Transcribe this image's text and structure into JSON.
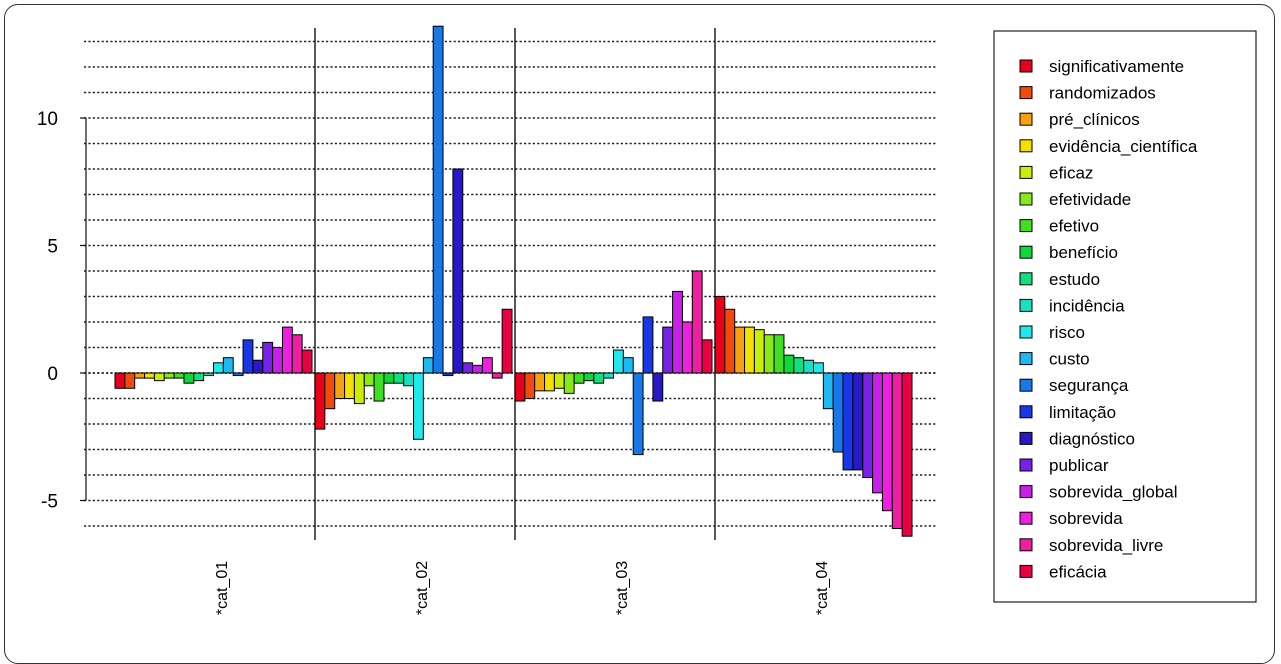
{
  "chart_data": {
    "type": "bar",
    "title": "",
    "xlabel": "",
    "ylabel": "",
    "ylim": [
      -6.8,
      13.6
    ],
    "yticks": [
      -5,
      0,
      5,
      10
    ],
    "ytick_labels": [
      "-5",
      "0",
      "5",
      "10"
    ],
    "grid": "horizontal dotted",
    "legend_position": "right",
    "categories": [
      "*cat_01",
      "*cat_02",
      "*cat_03",
      "*cat_04"
    ],
    "series": [
      {
        "name": "significativamente",
        "color": "#E8001A"
      },
      {
        "name": "randomizados",
        "color": "#F24A0A"
      },
      {
        "name": "pré_clínicos",
        "color": "#F8A010"
      },
      {
        "name": "evidência_científica",
        "color": "#F5E000"
      },
      {
        "name": "eficaz",
        "color": "#C8EE0A"
      },
      {
        "name": "efetividade",
        "color": "#88E818"
      },
      {
        "name": "efetivo",
        "color": "#40E020"
      },
      {
        "name": "benefício",
        "color": "#10D838"
      },
      {
        "name": "estudo",
        "color": "#10E080"
      },
      {
        "name": "incidência",
        "color": "#18E0C0"
      },
      {
        "name": "risco",
        "color": "#20E8EE"
      },
      {
        "name": "custo",
        "color": "#20B8F0"
      },
      {
        "name": "segurança",
        "color": "#1878E8"
      },
      {
        "name": "limitação",
        "color": "#1838E8"
      },
      {
        "name": "diagnóstico",
        "color": "#2818C8"
      },
      {
        "name": "publicar",
        "color": "#7820E8"
      },
      {
        "name": "sobrevida_global",
        "color": "#C820E8"
      },
      {
        "name": "sobrevida",
        "color": "#EE20E0"
      },
      {
        "name": "sobrevida_livre",
        "color": "#EE20A0"
      },
      {
        "name": "eficácia",
        "color": "#E80040"
      }
    ],
    "values": [
      [
        -0.6,
        -0.6,
        -0.2,
        -0.2,
        -0.3,
        -0.2,
        -0.2,
        -0.4,
        -0.3,
        -0.1,
        0.4,
        0.6,
        -0.1,
        1.3,
        0.5,
        1.2,
        1.0,
        1.8,
        1.5,
        0.9
      ],
      [
        -2.2,
        -1.4,
        -1.0,
        -1.0,
        -1.2,
        -0.5,
        -1.1,
        -0.4,
        -0.4,
        -0.5,
        -2.6,
        0.6,
        13.6,
        -0.1,
        8.0,
        0.4,
        0.3,
        0.6,
        -0.2,
        2.5
      ],
      [
        -1.1,
        -1.0,
        -0.7,
        -0.7,
        -0.6,
        -0.8,
        -0.4,
        -0.3,
        -0.4,
        -0.2,
        0.9,
        0.6,
        -3.2,
        2.2,
        -1.1,
        1.8,
        3.2,
        2.0,
        4.0,
        1.3
      ],
      [
        3.0,
        2.5,
        1.8,
        1.8,
        1.7,
        1.5,
        1.5,
        0.7,
        0.6,
        0.5,
        0.4,
        -1.4,
        -3.1,
        -3.8,
        -3.8,
        -4.1,
        -4.7,
        -5.4,
        -6.1,
        -6.4
      ]
    ]
  }
}
